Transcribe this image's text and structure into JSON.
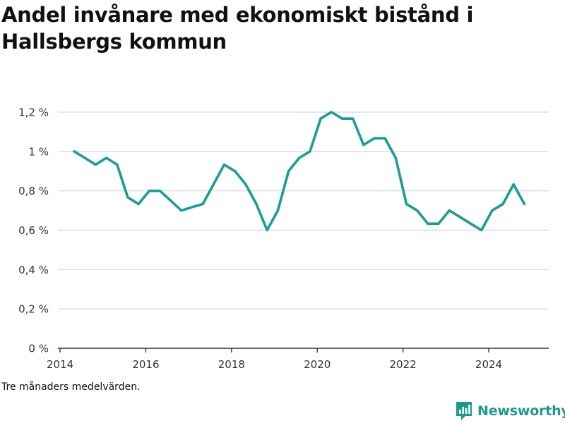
{
  "title": "Andel invånare med ekonomiskt bistånd i Hallsbergs kommun",
  "note": "Tre månaders medelvärden.",
  "brand": {
    "name": "Newsworthy",
    "icon": "newsworthy-logo-icon",
    "color": "#1e9a8c"
  },
  "colors": {
    "line": "#1a9e94",
    "grid": "#dddddd",
    "axis": "#333333"
  },
  "chart_data": {
    "type": "line",
    "title": "Andel invånare med ekonomiskt bistånd i Hallsbergs kommun",
    "xlabel": "",
    "ylabel": "",
    "xlim": [
      2013.95,
      2025.4
    ],
    "ylim": [
      0,
      1.2
    ],
    "grid": true,
    "x_ticks": [
      2014,
      2016,
      2018,
      2020,
      2022,
      2024
    ],
    "y_ticks": [
      {
        "value": 0,
        "label": "0 %"
      },
      {
        "value": 0.2,
        "label": "0,2 %"
      },
      {
        "value": 0.4,
        "label": "0,4 %"
      },
      {
        "value": 0.6,
        "label": "0,6 %"
      },
      {
        "value": 0.8,
        "label": "0,8 %"
      },
      {
        "value": 1.0,
        "label": "1 %"
      },
      {
        "value": 1.2,
        "label": "1,2 %"
      }
    ],
    "series": [
      {
        "color": "#1a9e94",
        "x": [
          2014.33,
          2014.58,
          2014.83,
          2015.08,
          2015.33,
          2015.58,
          2015.83,
          2016.08,
          2016.33,
          2016.58,
          2016.83,
          2017.08,
          2017.33,
          2017.58,
          2017.83,
          2018.08,
          2018.33,
          2018.58,
          2018.83,
          2019.08,
          2019.33,
          2019.58,
          2019.83,
          2020.08,
          2020.33,
          2020.58,
          2020.83,
          2021.08,
          2021.33,
          2021.58,
          2021.83,
          2022.08,
          2022.33,
          2022.58,
          2022.83,
          2023.08,
          2023.33,
          2023.58,
          2023.83,
          2024.08,
          2024.33,
          2024.58,
          2024.83
        ],
        "y": [
          1.0,
          0.967,
          0.933,
          0.967,
          0.933,
          0.767,
          0.733,
          0.8,
          0.8,
          0.75,
          0.7,
          0.717,
          0.733,
          0.833,
          0.933,
          0.9,
          0.833,
          0.733,
          0.6,
          0.7,
          0.9,
          0.967,
          1.0,
          1.167,
          1.2,
          1.167,
          1.167,
          1.033,
          1.067,
          1.067,
          0.967,
          0.733,
          0.7,
          0.633,
          0.633,
          0.7,
          0.667,
          0.633,
          0.6,
          0.7,
          0.733,
          0.833,
          0.733
        ]
      }
    ]
  }
}
